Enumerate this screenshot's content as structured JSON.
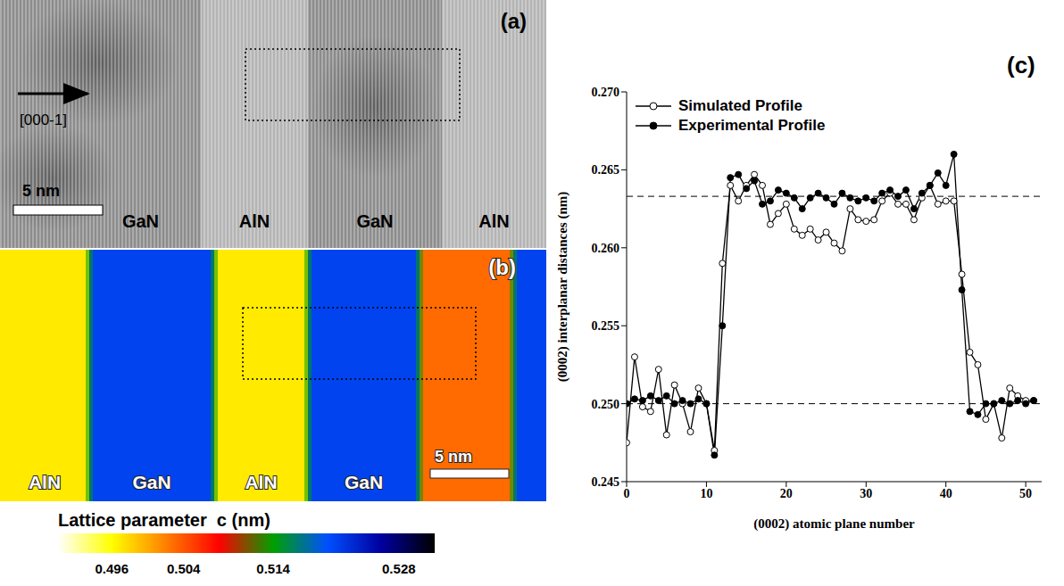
{
  "chart_data": {
    "type": "line",
    "panel_label": "(c)",
    "x_label": "(0002) atomic plane number",
    "y_label": "(0002) interplanar distances (nm)",
    "x": [
      0,
      1,
      2,
      3,
      4,
      5,
      6,
      7,
      8,
      9,
      10,
      11,
      12,
      13,
      14,
      15,
      16,
      17,
      18,
      19,
      20,
      21,
      22,
      23,
      24,
      25,
      26,
      27,
      28,
      29,
      30,
      31,
      32,
      33,
      34,
      35,
      36,
      37,
      38,
      39,
      40,
      41,
      42,
      43,
      44,
      45,
      46,
      47,
      48,
      49,
      50,
      51
    ],
    "series": [
      {
        "name": "Simulated Profile",
        "color": "#000000",
        "marker": "open_circle",
        "line_style": "solid",
        "values": [
          0.2475,
          0.253,
          0.2498,
          0.2495,
          0.2522,
          0.248,
          0.2512,
          0.25,
          0.2482,
          0.251,
          0.25,
          0.247,
          0.259,
          0.264,
          0.263,
          0.264,
          0.2647,
          0.264,
          0.2615,
          0.2622,
          0.2628,
          0.2612,
          0.2608,
          0.2612,
          0.2605,
          0.261,
          0.2603,
          0.2598,
          0.2625,
          0.2618,
          0.2617,
          0.2618,
          0.263,
          0.2635,
          0.2628,
          0.2628,
          0.2618,
          0.2632,
          0.264,
          0.2628,
          0.263,
          0.263,
          0.2583,
          0.2533,
          0.2525,
          0.249,
          0.25,
          0.2478,
          0.251,
          0.2505,
          0.2502,
          0.2502
        ]
      },
      {
        "name": "Experimental Profile",
        "color": "#000000",
        "marker": "filled_circle",
        "line_style": "solid",
        "values": [
          0.25,
          0.2503,
          0.2502,
          0.2505,
          0.2502,
          0.2505,
          0.25,
          0.2502,
          0.25,
          0.2503,
          0.25,
          0.2467,
          0.255,
          0.2645,
          0.2647,
          0.2638,
          0.2643,
          0.2628,
          0.263,
          0.2637,
          0.2635,
          0.2632,
          0.2625,
          0.2632,
          0.2635,
          0.2632,
          0.2628,
          0.2635,
          0.2632,
          0.263,
          0.2632,
          0.263,
          0.2635,
          0.2637,
          0.2633,
          0.2637,
          0.2625,
          0.2635,
          0.264,
          0.2648,
          0.264,
          0.266,
          0.2573,
          0.2495,
          0.2493,
          0.25,
          0.25,
          0.2502,
          0.25,
          0.2502,
          0.25,
          0.2502
        ]
      }
    ],
    "xlim": [
      0,
      52
    ],
    "xticks": [
      0,
      10,
      20,
      30,
      40,
      50
    ],
    "ylim": [
      0.245,
      0.27
    ],
    "yticks": [
      0.245,
      {
        "value": 0.25,
        "label": "0.250"
      },
      0.255,
      {
        "value": 0.26,
        "label": "0.260"
      },
      0.265,
      {
        "value": 0.27,
        "label": "0.270"
      }
    ],
    "reference_lines": [
      0.2633,
      0.25
    ],
    "grid": false,
    "legend": "upper left"
  },
  "panel_a": {
    "panel_label": "(a)",
    "direction_label": "[000-1]",
    "scale_bar": "5 nm",
    "layers": [
      "GaN",
      "AlN",
      "GaN",
      "AlN"
    ]
  },
  "panel_b": {
    "panel_label": "(b)",
    "scale_bar": "5 nm",
    "layers": [
      {
        "label": "AlN",
        "c": 0.497
      },
      {
        "label": "GaN",
        "c": 0.521
      },
      {
        "label": "AlN",
        "c": 0.497
      },
      {
        "label": "GaN",
        "c": 0.521
      },
      {
        "label": null,
        "c": 0.503
      },
      {
        "label": null,
        "c": 0.521
      }
    ],
    "colorbar": {
      "title": "Lattice parameter  c (nm)",
      "range": [
        0.49,
        0.532
      ],
      "ticks": [
        0.496,
        0.504,
        0.514,
        0.528
      ],
      "colors": [
        "#ffffff",
        "#ffff00",
        "#ff8000",
        "#ff0000",
        "#00a000",
        "#0050ff",
        "#0000a0",
        "#000000"
      ]
    }
  }
}
